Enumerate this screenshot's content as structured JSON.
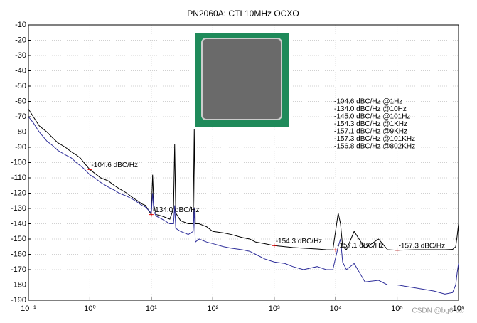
{
  "chart_data": {
    "type": "line",
    "title": "PN2060A: CTI 10MHz OCXO",
    "log_x": true,
    "grid": true,
    "xlim": [
      0.1,
      1000000
    ],
    "ylim": [
      -190,
      -10
    ],
    "xticks": [
      {
        "value": 0.1,
        "label": "10⁻¹"
      },
      {
        "value": 1,
        "label": "10⁰"
      },
      {
        "value": 10,
        "label": "10¹"
      },
      {
        "value": 100,
        "label": "10²"
      },
      {
        "value": 1000,
        "label": "10³"
      },
      {
        "value": 10000,
        "label": "10⁴"
      },
      {
        "value": 100000,
        "label": "10⁵"
      },
      {
        "value": 1000000,
        "label": "10⁶"
      }
    ],
    "yticks": [
      -190,
      -180,
      -170,
      -160,
      -150,
      -140,
      -130,
      -120,
      -110,
      -100,
      -90,
      -80,
      -70,
      -60,
      -50,
      -40,
      -30,
      -20,
      -10
    ],
    "x": [
      0.1,
      0.12,
      0.15,
      0.2,
      0.25,
      0.3,
      0.4,
      0.5,
      0.6,
      0.7,
      0.8,
      1,
      1.2,
      1.5,
      2,
      2.5,
      3,
      4,
      5,
      6,
      7,
      8,
      10,
      10.5,
      11,
      12,
      15,
      20,
      23,
      24,
      25,
      30,
      40,
      48,
      50,
      52,
      60,
      80,
      100,
      150,
      200,
      300,
      400,
      500,
      700,
      1000,
      1500,
      2000,
      3000,
      5000,
      7000,
      9000,
      11000,
      12000,
      13000,
      15000,
      20000,
      30000,
      50000,
      70000,
      100000,
      200000,
      400000,
      600000,
      800000,
      900000,
      950000,
      1000000
    ],
    "series": [
      {
        "color": "#000000",
        "values": [
          -65,
          -70,
          -76,
          -80,
          -84,
          -87,
          -90,
          -93,
          -95,
          -97,
          -100,
          -104.6,
          -107,
          -110,
          -112,
          -115,
          -117,
          -120,
          -123,
          -125,
          -127,
          -128,
          -134,
          -108,
          -128,
          -134,
          -135,
          -137,
          -130,
          -88,
          -133,
          -138,
          -140,
          -140,
          -78,
          -140,
          -140,
          -142,
          -145,
          -146,
          -147,
          -149,
          -150,
          -152,
          -153,
          -154.3,
          -155,
          -155.5,
          -156,
          -156.5,
          -157,
          -157.1,
          -133,
          -140,
          -155,
          -157,
          -145,
          -156,
          -150,
          -157,
          -157.3,
          -157,
          -157,
          -157,
          -156.8,
          -155,
          -148,
          -140
        ]
      },
      {
        "color": "#2e2e9a",
        "values": [
          -70,
          -74,
          -80,
          -86,
          -89,
          -92,
          -95,
          -97,
          -100,
          -102,
          -104,
          -108,
          -110,
          -113,
          -116,
          -118,
          -120,
          -122,
          -124,
          -126,
          -128,
          -129,
          -133,
          -120,
          -132,
          -135,
          -137,
          -140,
          -140,
          -128,
          -143,
          -145,
          -147,
          -145,
          -130,
          -152,
          -150,
          -152,
          -153,
          -155,
          -156,
          -157,
          -158,
          -160,
          -163,
          -165,
          -166,
          -168,
          -170,
          -168,
          -170,
          -170,
          -155,
          -150,
          -165,
          -170,
          -166,
          -178,
          -177,
          -180,
          -180,
          -182,
          -184,
          -186,
          -185,
          -180,
          -172,
          -166
        ]
      }
    ],
    "annotations": [
      {
        "text": "-104.6 dBC/Hz",
        "x": 1,
        "y": -104.6
      },
      {
        "text": "-134.0 dBC/Hz",
        "x": 10,
        "y": -134
      },
      {
        "text": "-154.3 dBC/Hz",
        "x": 1000,
        "y": -154.3
      },
      {
        "text": "-157.1 dBC/Hz",
        "x": 10000,
        "y": -157.1
      },
      {
        "text": "-157.3 dBC/Hz",
        "x": 100000,
        "y": -157.3
      }
    ],
    "summary": [
      "-104.6 dBC/Hz @1Hz",
      "-134.0 dBC/Hz @10Hz",
      "-145.0 dBC/Hz @101Hz",
      "-154.3 dBC/Hz @1KHz",
      "-157.1 dBC/Hz @9KHz",
      "-157.3 dBC/Hz @101KHz",
      "-156.8 dBC/Hz @802KHz"
    ],
    "watermark": "CSDN @bg6hxc"
  }
}
